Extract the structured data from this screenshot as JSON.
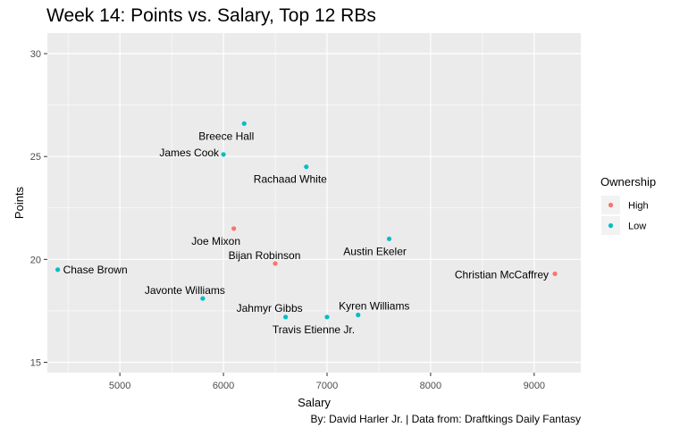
{
  "chart_data": {
    "type": "scatter",
    "title": "Week 14: Points vs. Salary, Top 12 RBs",
    "xlabel": "Salary",
    "ylabel": "Points",
    "caption": "By: David Harler Jr. | Data from: Draftkings Daily Fantasy",
    "xlim": [
      4300,
      9450
    ],
    "ylim": [
      14.5,
      31.0
    ],
    "xticks": [
      "5000",
      "6000",
      "7000",
      "8000",
      "9000"
    ],
    "yticks": [
      "15",
      "20",
      "25",
      "30"
    ],
    "grid": true,
    "legend": {
      "title": "Ownership",
      "position": "right",
      "entries": [
        {
          "label": "High",
          "color": "#F8766D"
        },
        {
          "label": "Low",
          "color": "#00BFC4"
        }
      ]
    },
    "points": [
      {
        "label": "Breece Hall",
        "x": 6200,
        "y": 26.6,
        "ownership": "Low"
      },
      {
        "label": "James Cook",
        "x": 6000,
        "y": 25.1,
        "ownership": "Low"
      },
      {
        "label": "Rachaad White",
        "x": 6800,
        "y": 24.5,
        "ownership": "Low"
      },
      {
        "label": "Joe Mixon",
        "x": 6100,
        "y": 21.5,
        "ownership": "High"
      },
      {
        "label": "Austin Ekeler",
        "x": 7600,
        "y": 21.0,
        "ownership": "Low"
      },
      {
        "label": "Bijan Robinson",
        "x": 6500,
        "y": 19.8,
        "ownership": "High"
      },
      {
        "label": "Chase Brown",
        "x": 4400,
        "y": 19.5,
        "ownership": "Low"
      },
      {
        "label": "Christian McCaffrey",
        "x": 9200,
        "y": 19.3,
        "ownership": "High"
      },
      {
        "label": "Javonte Williams",
        "x": 5800,
        "y": 18.1,
        "ownership": "Low"
      },
      {
        "label": "Kyren Williams",
        "x": 7300,
        "y": 17.3,
        "ownership": "Low"
      },
      {
        "label": "Jahmyr Gibbs",
        "x": 6600,
        "y": 17.2,
        "ownership": "Low"
      },
      {
        "label": "Travis Etienne Jr.",
        "x": 7000,
        "y": 17.2,
        "ownership": "Low"
      }
    ]
  }
}
